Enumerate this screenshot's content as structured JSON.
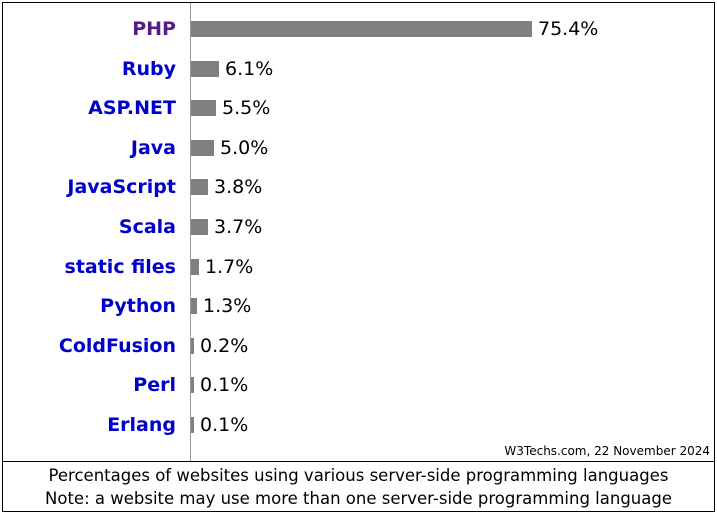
{
  "chart_data": {
    "type": "bar",
    "orientation": "horizontal",
    "categories": [
      "PHP",
      "Ruby",
      "ASP.NET",
      "Java",
      "JavaScript",
      "Scala",
      "static files",
      "Python",
      "ColdFusion",
      "Perl",
      "Erlang"
    ],
    "values": [
      75.4,
      6.1,
      5.5,
      5.0,
      3.8,
      3.7,
      1.7,
      1.3,
      0.2,
      0.1,
      0.1
    ],
    "value_labels": [
      "75.4%",
      "6.1%",
      "5.5%",
      "5.0%",
      "3.8%",
      "3.7%",
      "1.7%",
      "1.3%",
      "0.2%",
      "0.1%",
      "0.1%"
    ],
    "visited": [
      true,
      false,
      false,
      false,
      false,
      false,
      false,
      false,
      false,
      false,
      false
    ],
    "xlim": [
      0,
      100
    ],
    "grid": false,
    "bar_color": "#808080",
    "link_color": "#0000cc",
    "visited_link_color": "#551a8b"
  },
  "credit": "W3Techs.com, 22 November 2024",
  "caption": {
    "line1": "Percentages of websites using various server-side programming languages",
    "line2": "Note: a website may use more than one server-side programming language"
  }
}
